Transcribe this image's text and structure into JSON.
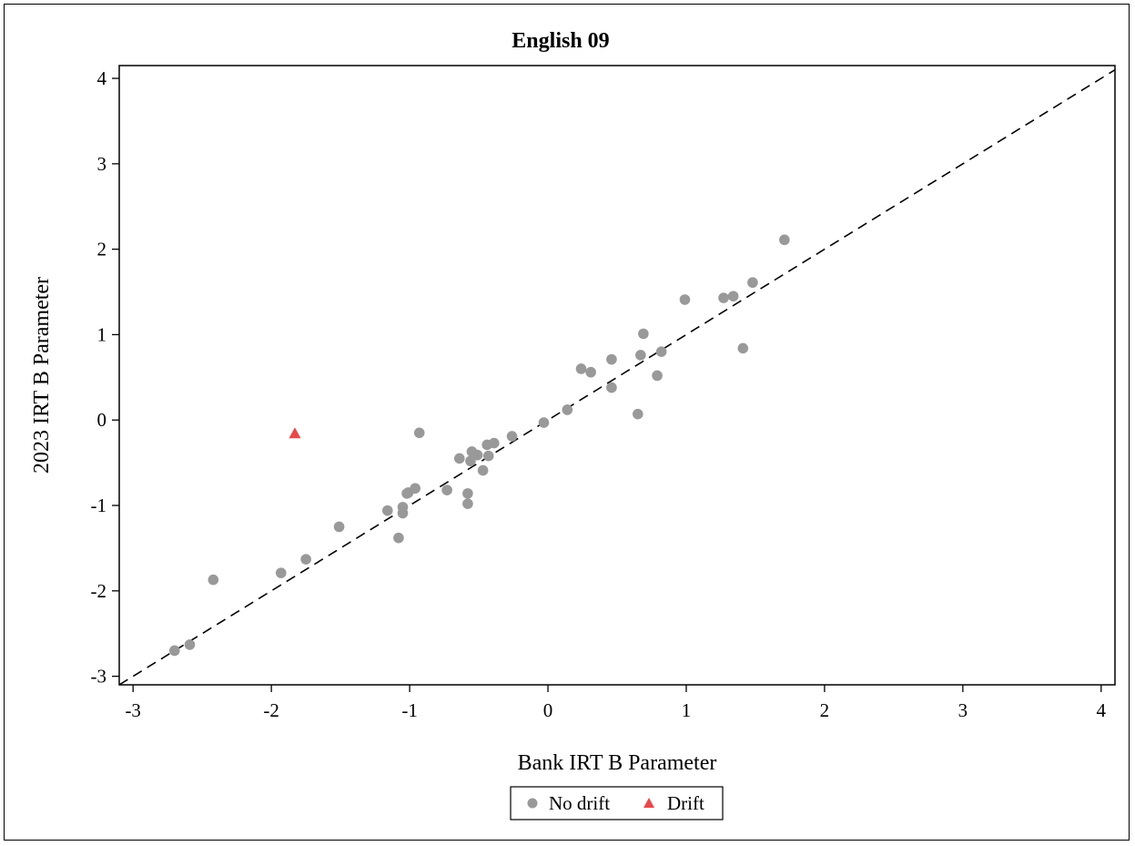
{
  "chart_data": {
    "type": "scatter",
    "title": "English 09",
    "xlabel": "Bank IRT B Parameter",
    "ylabel": "2023 IRT B Parameter",
    "xlim": [
      -3.1,
      4.1
    ],
    "ylim": [
      -3.1,
      4.15
    ],
    "xticks": [
      "-3",
      "-2",
      "-1",
      "0",
      "1",
      "2",
      "3",
      "4"
    ],
    "yticks": [
      "-3",
      "-2",
      "-1",
      "0",
      "1",
      "2",
      "3",
      "4"
    ],
    "grid": false,
    "legend_position": "bottom",
    "reference_line": {
      "style": "dashed",
      "slope": 1,
      "intercept": 0
    },
    "series": [
      {
        "name": "No drift",
        "marker": "circle",
        "color": "#999999",
        "points": [
          [
            -2.7,
            -2.7
          ],
          [
            -2.59,
            -2.63
          ],
          [
            -2.42,
            -1.87
          ],
          [
            -1.93,
            -1.79
          ],
          [
            -1.75,
            -1.63
          ],
          [
            -1.51,
            -1.25
          ],
          [
            -1.16,
            -1.06
          ],
          [
            -1.08,
            -1.38
          ],
          [
            -1.05,
            -1.02
          ],
          [
            -1.05,
            -1.09
          ],
          [
            -1.02,
            -0.86
          ],
          [
            -1.01,
            -0.85
          ],
          [
            -0.96,
            -0.8
          ],
          [
            -0.93,
            -0.15
          ],
          [
            -0.73,
            -0.82
          ],
          [
            -0.64,
            -0.45
          ],
          [
            -0.58,
            -0.86
          ],
          [
            -0.58,
            -0.98
          ],
          [
            -0.56,
            -0.48
          ],
          [
            -0.55,
            -0.37
          ],
          [
            -0.51,
            -0.41
          ],
          [
            -0.47,
            -0.59
          ],
          [
            -0.44,
            -0.29
          ],
          [
            -0.43,
            -0.42
          ],
          [
            -0.39,
            -0.27
          ],
          [
            -0.26,
            -0.19
          ],
          [
            -0.03,
            -0.03
          ],
          [
            0.14,
            0.12
          ],
          [
            0.24,
            0.6
          ],
          [
            0.31,
            0.56
          ],
          [
            0.46,
            0.71
          ],
          [
            0.46,
            0.38
          ],
          [
            0.65,
            0.07
          ],
          [
            0.67,
            0.76
          ],
          [
            0.69,
            1.01
          ],
          [
            0.79,
            0.52
          ],
          [
            0.82,
            0.8
          ],
          [
            0.99,
            1.41
          ],
          [
            1.27,
            1.43
          ],
          [
            1.34,
            1.45
          ],
          [
            1.41,
            0.84
          ],
          [
            1.48,
            1.61
          ],
          [
            1.71,
            2.11
          ]
        ]
      },
      {
        "name": "Drift",
        "marker": "triangle",
        "color": "#e8484a",
        "points": [
          [
            -1.83,
            -0.16
          ]
        ]
      }
    ]
  }
}
